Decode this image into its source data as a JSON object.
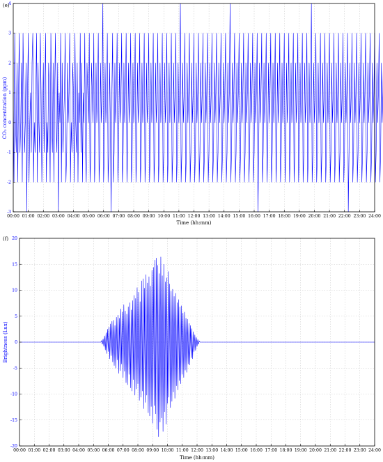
{
  "chart_data": [
    {
      "panel_label": "(e)",
      "type": "line",
      "title": "",
      "xlabel": "Time (hh:mm)",
      "ylabel": "CO₂ concentration (ppm)",
      "xlim": [
        0,
        24
      ],
      "ylim": [
        -3,
        4
      ],
      "grid": true,
      "line_color": "#0000ff",
      "x_tick_labels": [
        "00:00",
        "01:00",
        "02:00",
        "03:00",
        "04:00",
        "05:00",
        "06:00",
        "07:00",
        "08:00",
        "09:00",
        "10:00",
        "11:00",
        "12:00",
        "13:00",
        "14:00",
        "15:00",
        "16:00",
        "17:00",
        "18:00",
        "19:00",
        "20:00",
        "21:00",
        "22:00",
        "23:00",
        "24:00"
      ],
      "y_ticks": [
        -3,
        -2,
        -1,
        0,
        1,
        2,
        3,
        4
      ],
      "series": [
        {
          "x_start": 0,
          "x_step": 0.05,
          "values": [
            1,
            -2,
            3,
            0,
            -1,
            2,
            -2,
            1,
            3,
            -1,
            0,
            2,
            -2,
            3,
            1,
            -1,
            0,
            2,
            -3,
            1,
            3,
            -2,
            0,
            1,
            -1,
            2,
            3,
            -2,
            0,
            -1,
            1,
            3,
            -2,
            2,
            0,
            -1,
            3,
            1,
            -2,
            0,
            2,
            -1,
            1,
            3,
            -2,
            0,
            -1,
            2,
            1,
            -2,
            3,
            0,
            -1,
            2,
            -2,
            1,
            3,
            0,
            -1,
            2,
            -3,
            1,
            0,
            3,
            -2,
            2,
            -1,
            0,
            1,
            3,
            -2,
            -1,
            2,
            0,
            1,
            3,
            -2,
            0,
            -1,
            2,
            1,
            -2,
            3,
            0,
            -1,
            2,
            -2,
            1,
            0,
            3,
            -1,
            2,
            -2,
            1,
            0,
            3,
            -1,
            -2,
            2,
            1,
            0,
            3,
            -2,
            -1,
            2,
            1,
            0,
            3,
            -2,
            -1,
            2,
            0,
            1,
            3,
            -2,
            -1,
            2,
            0,
            1,
            4,
            -2,
            -1,
            2,
            0,
            1,
            3,
            -2,
            -1,
            2,
            0,
            -3,
            1,
            3,
            -2,
            -1,
            2,
            0,
            1,
            3,
            -2,
            -1,
            2,
            0,
            1,
            3,
            -2,
            -1,
            2,
            0,
            1,
            3,
            -2,
            -1,
            2,
            0,
            1,
            3,
            -2,
            -1,
            2,
            0,
            1,
            3,
            -2,
            -1,
            2,
            0,
            1,
            3,
            -2,
            -1,
            2,
            0,
            1,
            3,
            -2,
            -1,
            2,
            0,
            1,
            3,
            -2,
            -1,
            2,
            0,
            1,
            3,
            -2,
            -1,
            2,
            0,
            1,
            3,
            -2,
            -1,
            2,
            0,
            1,
            3,
            -2,
            -1,
            2,
            0,
            1,
            3,
            -2,
            -1,
            2,
            0,
            1,
            3,
            -2,
            -1,
            2,
            0,
            1,
            3,
            -2,
            -1,
            2,
            0,
            1,
            4,
            -2,
            -1,
            2,
            0,
            1,
            3,
            -2,
            -1,
            2,
            0,
            1,
            3,
            -2,
            -1,
            2,
            0,
            1,
            3,
            -2,
            -1,
            2,
            0,
            1,
            3,
            -2,
            -1,
            2,
            0,
            1,
            3,
            -2,
            -1,
            2,
            0,
            1,
            3,
            -2,
            -1,
            2,
            0,
            1,
            3,
            -2,
            -1,
            2,
            0,
            1,
            3,
            -2,
            -1,
            2,
            0,
            1,
            3,
            -2,
            -1,
            2,
            0,
            1,
            3,
            -2,
            -1,
            2,
            0,
            1,
            4,
            -2,
            -1,
            2,
            0,
            1,
            3,
            -2,
            -1,
            2,
            0,
            1,
            3,
            -2,
            -1,
            2,
            0,
            1,
            3,
            -2,
            -1,
            2,
            0,
            1,
            3,
            -2,
            -1,
            2,
            0,
            1,
            3,
            -2,
            -1,
            2,
            0,
            1,
            3,
            -3,
            -1,
            2,
            0,
            1,
            3,
            -2,
            -1,
            2,
            0,
            1,
            3,
            -2,
            -1,
            2,
            0,
            1,
            3,
            -2,
            -1,
            2,
            0,
            1,
            3,
            -2,
            -1,
            2,
            0,
            1,
            3,
            -2,
            -1,
            2,
            0,
            1,
            3,
            -2,
            -1,
            2,
            0,
            1,
            3,
            -2,
            -1,
            2,
            0,
            1,
            3,
            -2,
            -1,
            2,
            0,
            1,
            3,
            -2,
            -1,
            2,
            0,
            1,
            3,
            -2,
            -1,
            2,
            0,
            1,
            3,
            -2,
            -1,
            2,
            0,
            1,
            4,
            -2,
            -1,
            2,
            0,
            1,
            3,
            -2,
            -1,
            2,
            0,
            1,
            3,
            -2,
            -1,
            2,
            0,
            1,
            3,
            -2,
            -1,
            2,
            0,
            1,
            3,
            -2,
            -1,
            2,
            0,
            1,
            3,
            -2,
            -1,
            2,
            0,
            1,
            3,
            -2,
            -1,
            2,
            0,
            1,
            3,
            -2,
            -1,
            2,
            0,
            1,
            3,
            -3,
            -1,
            2,
            0,
            1,
            3,
            -2,
            -1,
            2,
            0,
            1,
            3,
            -2,
            -1,
            2,
            0,
            1,
            3,
            -2,
            -1,
            2,
            0,
            1,
            3,
            -2,
            -1,
            2,
            0,
            1,
            3,
            -2,
            -1,
            2,
            0,
            1,
            3,
            -2,
            -1,
            2,
            0,
            1,
            3,
            -2,
            -1,
            2,
            0,
            1,
            3,
            -2,
            -1,
            2,
            0,
            1,
            3,
            -2,
            -1,
            2,
            0,
            1,
            3,
            -2,
            -1,
            2,
            0,
            1,
            3,
            -2,
            -1,
            2,
            0,
            1,
            3,
            -2,
            -1,
            2,
            0,
            1
          ]
        }
      ]
    },
    {
      "panel_label": "(f)",
      "type": "line",
      "title": "",
      "xlabel": "Time (hh:mm)",
      "ylabel": "Brightness (Lux)",
      "xlim": [
        0,
        24
      ],
      "ylim": [
        -20,
        20
      ],
      "grid": true,
      "line_color": "#0000ff",
      "x_tick_labels": [
        "00:00",
        "01:00",
        "02:00",
        "03:00",
        "04:00",
        "05:00",
        "06:00",
        "07:00",
        "08:00",
        "09:00",
        "10:00",
        "11:00",
        "12:00",
        "13:00",
        "14:00",
        "15:00",
        "16:00",
        "17:00",
        "18:00",
        "19:00",
        "20:00",
        "21:00",
        "22:00",
        "23:00",
        "24:00"
      ],
      "y_ticks": [
        -20,
        -15,
        -10,
        -5,
        0,
        5,
        10,
        15,
        20
      ],
      "series": [
        {
          "x_start": 5.5,
          "x_step": 0.05,
          "values": [
            0,
            0.3,
            -0.4,
            0.6,
            -0.8,
            1.2,
            -1.5,
            1.8,
            -2.2,
            2.5,
            -1.8,
            2.9,
            -3.2,
            3.5,
            -2.6,
            4.0,
            -3.8,
            4.2,
            -4.5,
            3.2,
            -5.0,
            4.8,
            -3.4,
            5.2,
            -6.0,
            4.6,
            -5.5,
            6.4,
            -4.2,
            5.8,
            -6.8,
            7.2,
            -5.6,
            6.0,
            -7.8,
            5.4,
            -8.2,
            6.8,
            -6.2,
            7.6,
            -8.8,
            6.2,
            -9.4,
            8.0,
            -7.2,
            9.0,
            -10.2,
            8.4,
            -9.0,
            10.5,
            -8.0,
            9.6,
            -11.2,
            7.8,
            -10.6,
            11.8,
            -9.4,
            12.2,
            -12.8,
            10.4,
            -11.6,
            13.0,
            -10.2,
            11.4,
            -13.6,
            12.6,
            -14.2,
            10.8,
            -12.4,
            13.8,
            -15.6,
            14.4,
            -12.2,
            15.8,
            -13.8,
            16.2,
            -16.8,
            14.8,
            -18.2,
            13.2,
            -15.4,
            16.4,
            -14.6,
            12.8,
            -17.2,
            15.0,
            -13.4,
            11.6,
            -15.8,
            12.4,
            -11.8,
            13.6,
            -10.6,
            11.2,
            -12.6,
            9.8,
            -11.4,
            10.2,
            -9.6,
            8.8,
            -10.8,
            9.4,
            -8.4,
            7.6,
            -9.2,
            8.2,
            -7.4,
            6.8,
            -8.0,
            7.0,
            -6.2,
            5.6,
            -6.8,
            5.8,
            -5.4,
            4.6,
            -5.8,
            4.4,
            -4.2,
            3.6,
            -4.4,
            3.2,
            -3.0,
            2.6,
            -3.2,
            2.0,
            -1.8,
            1.4,
            -1.6,
            0.9,
            -0.8,
            0.5,
            -0.4,
            0.2,
            0
          ]
        }
      ]
    }
  ]
}
